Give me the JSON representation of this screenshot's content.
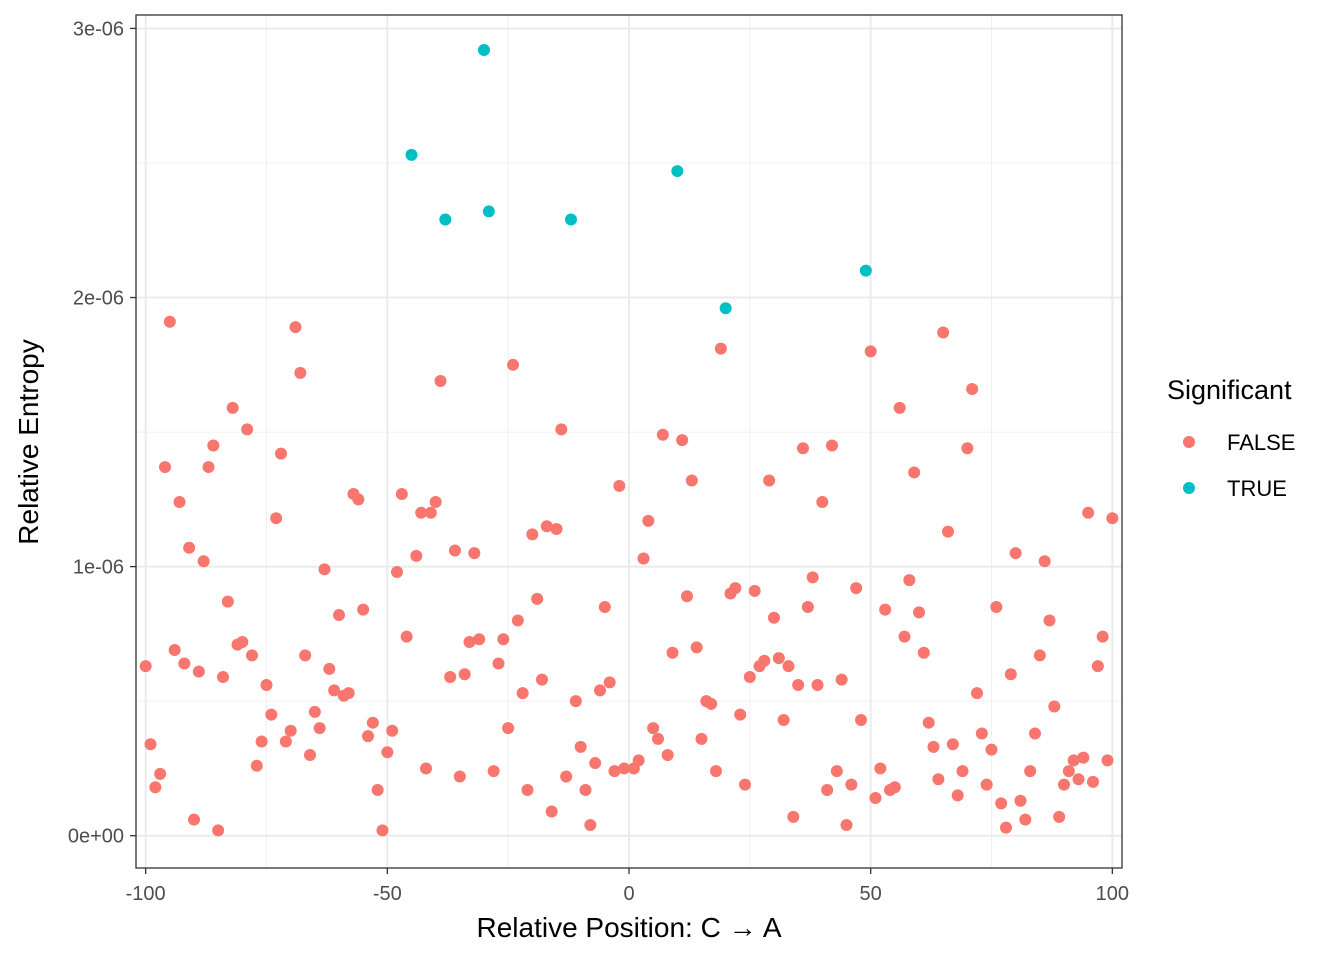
{
  "chart_data": {
    "type": "scatter",
    "xlabel": "Relative Position: C → A",
    "ylabel": "Relative Entropy",
    "xlim": [
      -102,
      102
    ],
    "ylim": [
      -1.2e-07,
      3.05e-06
    ],
    "x_ticks": [
      -100,
      -50,
      0,
      50,
      100
    ],
    "x_tick_labels": [
      "-100",
      "-50",
      "0",
      "50",
      "100"
    ],
    "y_ticks": [
      0,
      1e-06,
      2e-06,
      3e-06
    ],
    "y_tick_labels": [
      "0e+00",
      "1e-06",
      "2e-06",
      "3e-06"
    ],
    "grid": true,
    "legend": {
      "title": "Significant",
      "position": "right",
      "entries": [
        {
          "label": "FALSE",
          "color": "#F8766D"
        },
        {
          "label": "TRUE",
          "color": "#00BFC4"
        }
      ]
    },
    "series": [
      {
        "name": "FALSE",
        "color": "#F8766D",
        "points": [
          [
            -100,
            6.3e-07
          ],
          [
            -99,
            3.4e-07
          ],
          [
            -98,
            1.8e-07
          ],
          [
            -97,
            2.3e-07
          ],
          [
            -96,
            1.37e-06
          ],
          [
            -95,
            1.91e-06
          ],
          [
            -94,
            6.9e-07
          ],
          [
            -93,
            1.24e-06
          ],
          [
            -92,
            6.4e-07
          ],
          [
            -91,
            1.07e-06
          ],
          [
            -90,
            6e-08
          ],
          [
            -89,
            6.1e-07
          ],
          [
            -88,
            1.02e-06
          ],
          [
            -87,
            1.37e-06
          ],
          [
            -86,
            1.45e-06
          ],
          [
            -85,
            2e-08
          ],
          [
            -84,
            5.9e-07
          ],
          [
            -83,
            8.7e-07
          ],
          [
            -82,
            1.59e-06
          ],
          [
            -81,
            7.1e-07
          ],
          [
            -80,
            7.2e-07
          ],
          [
            -79,
            1.51e-06
          ],
          [
            -78,
            6.7e-07
          ],
          [
            -77,
            2.6e-07
          ],
          [
            -76,
            3.5e-07
          ],
          [
            -75,
            5.6e-07
          ],
          [
            -74,
            4.5e-07
          ],
          [
            -73,
            1.18e-06
          ],
          [
            -72,
            1.42e-06
          ],
          [
            -71,
            3.5e-07
          ],
          [
            -70,
            3.9e-07
          ],
          [
            -69,
            1.89e-06
          ],
          [
            -68,
            1.72e-06
          ],
          [
            -67,
            6.7e-07
          ],
          [
            -66,
            3e-07
          ],
          [
            -65,
            4.6e-07
          ],
          [
            -64,
            4e-07
          ],
          [
            -63,
            9.9e-07
          ],
          [
            -62,
            6.2e-07
          ],
          [
            -61,
            5.4e-07
          ],
          [
            -60,
            8.2e-07
          ],
          [
            -59,
            5.2e-07
          ],
          [
            -58,
            5.3e-07
          ],
          [
            -57,
            1.27e-06
          ],
          [
            -56,
            1.25e-06
          ],
          [
            -55,
            8.4e-07
          ],
          [
            -54,
            3.7e-07
          ],
          [
            -53,
            4.2e-07
          ],
          [
            -52,
            1.7e-07
          ],
          [
            -51,
            2e-08
          ],
          [
            -50,
            3.1e-07
          ],
          [
            -49,
            3.9e-07
          ],
          [
            -48,
            9.8e-07
          ],
          [
            -47,
            1.27e-06
          ],
          [
            -46,
            7.4e-07
          ],
          [
            -44,
            1.04e-06
          ],
          [
            -43,
            1.2e-06
          ],
          [
            -42,
            2.5e-07
          ],
          [
            -41,
            1.2e-06
          ],
          [
            -40,
            1.24e-06
          ],
          [
            -39,
            1.69e-06
          ],
          [
            -37,
            5.9e-07
          ],
          [
            -36,
            1.06e-06
          ],
          [
            -35,
            2.2e-07
          ],
          [
            -34,
            6e-07
          ],
          [
            -33,
            7.2e-07
          ],
          [
            -32,
            1.05e-06
          ],
          [
            -31,
            7.3e-07
          ],
          [
            -28,
            2.4e-07
          ],
          [
            -27,
            6.4e-07
          ],
          [
            -26,
            7.3e-07
          ],
          [
            -25,
            4e-07
          ],
          [
            -24,
            1.75e-06
          ],
          [
            -23,
            8e-07
          ],
          [
            -22,
            5.3e-07
          ],
          [
            -21,
            1.7e-07
          ],
          [
            -20,
            1.12e-06
          ],
          [
            -19,
            8.8e-07
          ],
          [
            -18,
            5.8e-07
          ],
          [
            -17,
            1.15e-06
          ],
          [
            -16,
            9e-08
          ],
          [
            -15,
            1.14e-06
          ],
          [
            -14,
            1.51e-06
          ],
          [
            -13,
            2.2e-07
          ],
          [
            -11,
            5e-07
          ],
          [
            -10,
            3.3e-07
          ],
          [
            -9,
            1.7e-07
          ],
          [
            -8,
            4e-08
          ],
          [
            -7,
            2.7e-07
          ],
          [
            -6,
            5.4e-07
          ],
          [
            -5,
            8.5e-07
          ],
          [
            -4,
            5.7e-07
          ],
          [
            -3,
            2.4e-07
          ],
          [
            -2,
            1.3e-06
          ],
          [
            -1,
            2.5e-07
          ],
          [
            1,
            2.5e-07
          ],
          [
            2,
            2.8e-07
          ],
          [
            3,
            1.03e-06
          ],
          [
            4,
            1.17e-06
          ],
          [
            5,
            4e-07
          ],
          [
            6,
            3.6e-07
          ],
          [
            7,
            1.49e-06
          ],
          [
            8,
            3e-07
          ],
          [
            9,
            6.8e-07
          ],
          [
            11,
            1.47e-06
          ],
          [
            12,
            8.9e-07
          ],
          [
            13,
            1.32e-06
          ],
          [
            14,
            7e-07
          ],
          [
            15,
            3.6e-07
          ],
          [
            16,
            5e-07
          ],
          [
            17,
            4.9e-07
          ],
          [
            18,
            2.4e-07
          ],
          [
            19,
            1.81e-06
          ],
          [
            21,
            9e-07
          ],
          [
            22,
            9.2e-07
          ],
          [
            23,
            4.5e-07
          ],
          [
            24,
            1.9e-07
          ],
          [
            25,
            5.9e-07
          ],
          [
            26,
            9.1e-07
          ],
          [
            27,
            6.3e-07
          ],
          [
            28,
            6.5e-07
          ],
          [
            29,
            1.32e-06
          ],
          [
            30,
            8.1e-07
          ],
          [
            31,
            6.6e-07
          ],
          [
            32,
            4.3e-07
          ],
          [
            33,
            6.3e-07
          ],
          [
            34,
            7e-08
          ],
          [
            35,
            5.6e-07
          ],
          [
            36,
            1.44e-06
          ],
          [
            37,
            8.5e-07
          ],
          [
            38,
            9.6e-07
          ],
          [
            39,
            5.6e-07
          ],
          [
            40,
            1.24e-06
          ],
          [
            41,
            1.7e-07
          ],
          [
            42,
            1.45e-06
          ],
          [
            43,
            2.4e-07
          ],
          [
            44,
            5.8e-07
          ],
          [
            45,
            4e-08
          ],
          [
            46,
            1.9e-07
          ],
          [
            47,
            9.2e-07
          ],
          [
            48,
            4.3e-07
          ],
          [
            50,
            1.8e-06
          ],
          [
            51,
            1.4e-07
          ],
          [
            52,
            2.5e-07
          ],
          [
            53,
            8.4e-07
          ],
          [
            54,
            1.7e-07
          ],
          [
            55,
            1.8e-07
          ],
          [
            56,
            1.59e-06
          ],
          [
            57,
            7.4e-07
          ],
          [
            58,
            9.5e-07
          ],
          [
            59,
            1.35e-06
          ],
          [
            60,
            8.3e-07
          ],
          [
            61,
            6.8e-07
          ],
          [
            62,
            4.2e-07
          ],
          [
            63,
            3.3e-07
          ],
          [
            64,
            2.1e-07
          ],
          [
            65,
            1.87e-06
          ],
          [
            66,
            1.13e-06
          ],
          [
            67,
            3.4e-07
          ],
          [
            68,
            1.5e-07
          ],
          [
            69,
            2.4e-07
          ],
          [
            70,
            1.44e-06
          ],
          [
            71,
            1.66e-06
          ],
          [
            72,
            5.3e-07
          ],
          [
            73,
            3.8e-07
          ],
          [
            74,
            1.9e-07
          ],
          [
            75,
            3.2e-07
          ],
          [
            76,
            8.5e-07
          ],
          [
            77,
            1.2e-07
          ],
          [
            78,
            3e-08
          ],
          [
            79,
            6e-07
          ],
          [
            80,
            1.05e-06
          ],
          [
            81,
            1.3e-07
          ],
          [
            82,
            6e-08
          ],
          [
            83,
            2.4e-07
          ],
          [
            84,
            3.8e-07
          ],
          [
            85,
            6.7e-07
          ],
          [
            86,
            1.02e-06
          ],
          [
            87,
            8e-07
          ],
          [
            88,
            4.8e-07
          ],
          [
            89,
            7e-08
          ],
          [
            90,
            1.9e-07
          ],
          [
            91,
            2.4e-07
          ],
          [
            92,
            2.8e-07
          ],
          [
            93,
            2.1e-07
          ],
          [
            94,
            2.9e-07
          ],
          [
            95,
            1.2e-06
          ],
          [
            96,
            2e-07
          ],
          [
            97,
            6.3e-07
          ],
          [
            98,
            7.4e-07
          ],
          [
            99,
            2.8e-07
          ],
          [
            100,
            1.18e-06
          ]
        ]
      },
      {
        "name": "TRUE",
        "color": "#00BFC4",
        "points": [
          [
            -45,
            2.53e-06
          ],
          [
            -38,
            2.29e-06
          ],
          [
            -30,
            2.92e-06
          ],
          [
            -29,
            2.32e-06
          ],
          [
            -12,
            2.29e-06
          ],
          [
            10,
            2.47e-06
          ],
          [
            20,
            1.96e-06
          ],
          [
            49,
            2.1e-06
          ]
        ]
      }
    ]
  }
}
